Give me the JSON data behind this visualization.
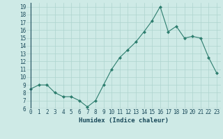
{
  "x": [
    0,
    1,
    2,
    3,
    4,
    5,
    6,
    7,
    8,
    9,
    10,
    11,
    12,
    13,
    14,
    15,
    16,
    17,
    18,
    19,
    20,
    21,
    22,
    23
  ],
  "y": [
    8.5,
    9.0,
    9.0,
    8.0,
    7.5,
    7.5,
    7.0,
    6.2,
    7.0,
    9.0,
    11.0,
    12.5,
    13.5,
    14.5,
    15.8,
    17.2,
    19.0,
    15.8,
    16.5,
    15.0,
    15.2,
    15.0,
    12.5,
    10.5
  ],
  "line_color": "#2d7d6e",
  "marker": "D",
  "marker_size": 2,
  "bg_color": "#ceeae6",
  "grid_color": "#aed4cf",
  "xlabel": "Humidex (Indice chaleur)",
  "ylim": [
    6,
    19.5
  ],
  "xlim": [
    -0.5,
    23.5
  ],
  "yticks": [
    6,
    7,
    8,
    9,
    10,
    11,
    12,
    13,
    14,
    15,
    16,
    17,
    18,
    19
  ],
  "xticks": [
    0,
    1,
    2,
    3,
    4,
    5,
    6,
    7,
    8,
    9,
    10,
    11,
    12,
    13,
    14,
    15,
    16,
    17,
    18,
    19,
    20,
    21,
    22,
    23
  ],
  "tick_fontsize": 5.5,
  "xlabel_fontsize": 6.5,
  "tick_color": "#1a4a5a",
  "xlabel_color": "#1a4a5a"
}
